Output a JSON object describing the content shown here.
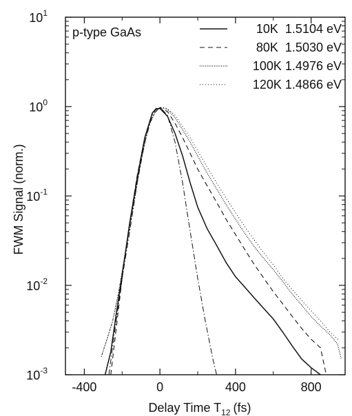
{
  "chart_data": {
    "type": "line",
    "title": "",
    "annotation": "p-type GaAs",
    "xlabel": "Delay Time T",
    "xlabel_sub": "12",
    "xlabel_unit": "(fs)",
    "ylabel": "FWM Signal (norm.)",
    "y_scale": "log",
    "xlim": [
      -500,
      980
    ],
    "ylim": [
      0.001,
      10
    ],
    "x_ticks": [
      -400,
      0,
      400,
      800
    ],
    "y_ticks": [
      {
        "value": 10,
        "base": "10",
        "exp": "1"
      },
      {
        "value": 1,
        "base": "10",
        "exp": "0"
      },
      {
        "value": 0.1,
        "base": "10",
        "exp": "-1"
      },
      {
        "value": 0.01,
        "base": "10",
        "exp": "-2"
      },
      {
        "value": 0.001,
        "base": "10",
        "exp": "-3"
      }
    ],
    "legend_position": "top-right",
    "series": [
      {
        "name": "10K  1.5104 eV",
        "style": "solid",
        "x": [
          -290,
          -260,
          -230,
          -200,
          -160,
          -120,
          -80,
          -40,
          -20,
          0,
          40,
          80,
          120,
          160,
          200,
          250,
          300,
          350,
          400,
          450,
          500,
          550,
          600,
          650,
          700,
          750,
          800,
          850
        ],
        "y": [
          0.001,
          0.0018,
          0.005,
          0.013,
          0.05,
          0.16,
          0.45,
          0.85,
          0.95,
          0.95,
          0.78,
          0.5,
          0.28,
          0.14,
          0.075,
          0.043,
          0.028,
          0.018,
          0.0125,
          0.0095,
          0.0072,
          0.0055,
          0.0042,
          0.003,
          0.0021,
          0.0015,
          0.0012,
          0.001
        ]
      },
      {
        "name": "80K  1.5030 eV",
        "style": "dashed",
        "x": [
          -260,
          -230,
          -200,
          -160,
          -120,
          -80,
          -40,
          0,
          40,
          80,
          120,
          160,
          200,
          250,
          300,
          350,
          400,
          450,
          500,
          550,
          600,
          650,
          700,
          750,
          800,
          850,
          880
        ],
        "y": [
          0.001,
          0.0035,
          0.012,
          0.05,
          0.17,
          0.45,
          0.85,
          0.97,
          0.88,
          0.65,
          0.45,
          0.3,
          0.2,
          0.13,
          0.085,
          0.055,
          0.037,
          0.025,
          0.017,
          0.012,
          0.0085,
          0.0062,
          0.0045,
          0.0033,
          0.0025,
          0.002,
          0.001
        ]
      },
      {
        "name": "100K 1.4976 eV",
        "style": "dotted",
        "x": [
          -310,
          -280,
          -250,
          -220,
          -180,
          -140,
          -100,
          -60,
          -20,
          0,
          40,
          80,
          120,
          160,
          200,
          250,
          300,
          350,
          400,
          450,
          500,
          550,
          600,
          650,
          700,
          750,
          800,
          850,
          900,
          940,
          960
        ],
        "y": [
          0.0016,
          0.0025,
          0.004,
          0.008,
          0.025,
          0.08,
          0.25,
          0.6,
          0.92,
          0.97,
          0.93,
          0.75,
          0.55,
          0.4,
          0.28,
          0.18,
          0.12,
          0.08,
          0.055,
          0.038,
          0.027,
          0.02,
          0.015,
          0.011,
          0.008,
          0.006,
          0.0045,
          0.0035,
          0.0028,
          0.0022,
          0.0015
        ]
      },
      {
        "name": "120K 1.4866 eV",
        "style": "sparse-dotted",
        "x": [
          -310,
          -280,
          -250,
          -220,
          -180,
          -140,
          -100,
          -60,
          -20,
          10,
          40,
          80,
          120,
          160,
          200,
          250,
          300,
          350,
          400,
          450,
          500,
          550,
          600,
          650,
          700,
          750,
          800,
          850,
          900,
          950
        ],
        "y": [
          0.0016,
          0.0025,
          0.004,
          0.008,
          0.025,
          0.08,
          0.25,
          0.6,
          0.92,
          0.99,
          0.95,
          0.8,
          0.6,
          0.45,
          0.32,
          0.21,
          0.14,
          0.095,
          0.065,
          0.045,
          0.032,
          0.023,
          0.017,
          0.012,
          0.009,
          0.0068,
          0.0052,
          0.004,
          0.003,
          0.0024
        ]
      },
      {
        "name": "",
        "style": "dash-dot",
        "x": [
          -270,
          -240,
          -200,
          -160,
          -120,
          -80,
          -40,
          0,
          40,
          80,
          120,
          160,
          200,
          240,
          280,
          300
        ],
        "y": [
          0.001,
          0.003,
          0.012,
          0.04,
          0.14,
          0.4,
          0.8,
          0.98,
          0.8,
          0.4,
          0.14,
          0.04,
          0.012,
          0.004,
          0.0015,
          0.001
        ]
      }
    ]
  }
}
